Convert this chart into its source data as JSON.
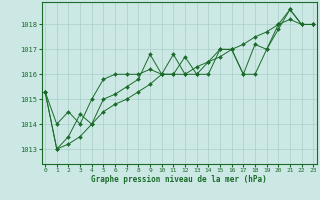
{
  "title": "Graphe pression niveau de la mer (hPa)",
  "background_color": "#cce8e4",
  "grid_color": "#aacfca",
  "line_color": "#1a6b2a",
  "xlim": [
    -0.3,
    23.3
  ],
  "ylim": [
    1012.4,
    1018.9
  ],
  "yticks": [
    1013,
    1014,
    1015,
    1016,
    1017,
    1018
  ],
  "xticks": [
    0,
    1,
    2,
    3,
    4,
    5,
    6,
    7,
    8,
    9,
    10,
    11,
    12,
    13,
    14,
    15,
    16,
    17,
    18,
    19,
    20,
    21,
    22,
    23
  ],
  "series": [
    [
      1015.3,
      1014.0,
      1014.5,
      1014.0,
      1015.0,
      1015.8,
      1016.0,
      1016.0,
      1016.0,
      1016.2,
      1016.0,
      1016.0,
      1016.7,
      1016.0,
      1016.0,
      1017.0,
      1017.0,
      1016.0,
      1017.2,
      1017.0,
      1018.0,
      1018.6,
      1018.0,
      1018.0
    ],
    [
      1015.3,
      1013.0,
      1013.2,
      1013.5,
      1014.0,
      1014.5,
      1014.8,
      1015.0,
      1015.3,
      1015.6,
      1016.0,
      1016.0,
      1016.0,
      1016.3,
      1016.5,
      1016.7,
      1017.0,
      1017.2,
      1017.5,
      1017.7,
      1018.0,
      1018.2,
      1018.0,
      1018.0
    ],
    [
      1015.3,
      1013.0,
      1013.5,
      1014.4,
      1014.0,
      1015.0,
      1015.2,
      1015.5,
      1015.8,
      1016.8,
      1016.0,
      1016.8,
      1016.0,
      1016.0,
      1016.5,
      1017.0,
      1017.0,
      1016.0,
      1016.0,
      1017.0,
      1017.8,
      1018.6,
      1018.0,
      1018.0
    ]
  ]
}
